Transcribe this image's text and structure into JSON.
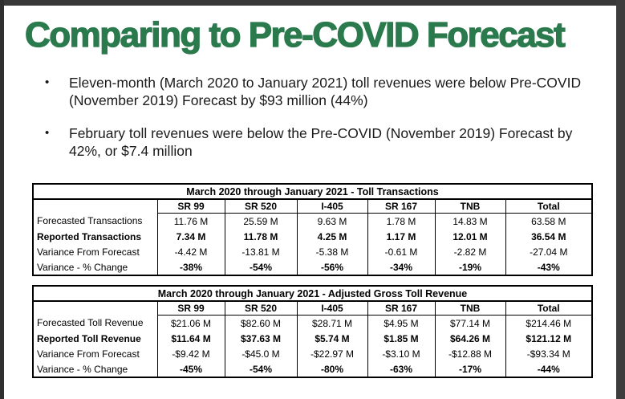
{
  "slide": {
    "title": "Comparing to Pre-COVID Forecast",
    "bullets": [
      "Eleven-month (March 2020 to January 2021) toll revenues were below Pre-COVID (November 2019) Forecast by $93 million (44%)",
      "February toll revenues were below the Pre-COVID (November 2019) Forecast by 42%, or $7.4 million"
    ]
  },
  "colors": {
    "title_green": "#2b7a4d",
    "frame_gray": "#383838",
    "table_border": "#000000"
  },
  "tables": [
    {
      "name": "toll-transactions",
      "title": "March 2020 through January 2021 - Toll Transactions",
      "columns": [
        "SR 99",
        "SR 520",
        "I-405",
        "SR 167",
        "TNB",
        "Total"
      ],
      "rows": [
        {
          "label": "Forecasted Transactions",
          "values": [
            "11.76 M",
            "25.59 M",
            "9.63 M",
            "1.78 M",
            "14.83 M",
            "63.58 M"
          ],
          "bold_label": false,
          "bold_values": false
        },
        {
          "label": "Reported Transactions",
          "values": [
            "7.34 M",
            "11.78 M",
            "4.25 M",
            "1.17 M",
            "12.01 M",
            "36.54 M"
          ],
          "bold_label": true,
          "bold_values": true
        },
        {
          "label": "Variance From Forecast",
          "values": [
            "-4.42 M",
            "-13.81 M",
            "-5.38 M",
            "-0.61 M",
            "-2.82 M",
            "-27.04 M"
          ],
          "bold_label": false,
          "bold_values": false
        },
        {
          "label": "Variance - % Change",
          "values": [
            "-38%",
            "-54%",
            "-56%",
            "-34%",
            "-19%",
            "-43%"
          ],
          "bold_label": false,
          "bold_values": true
        }
      ]
    },
    {
      "name": "adjusted-gross-toll-revenue",
      "title": "March 2020 through January 2021 - Adjusted Gross Toll Revenue",
      "columns": [
        "SR 99",
        "SR 520",
        "I-405",
        "SR 167",
        "TNB",
        "Total"
      ],
      "rows": [
        {
          "label": "Forecasted Toll Revenue",
          "values": [
            "$21.06 M",
            "$82.60 M",
            "$28.71 M",
            "$4.95 M",
            "$77.14 M",
            "$214.46 M"
          ],
          "bold_label": false,
          "bold_values": false
        },
        {
          "label": "Reported Toll Revenue",
          "values": [
            "$11.64 M",
            "$37.63 M",
            "$5.74 M",
            "$1.85 M",
            "$64.26 M",
            "$121.12 M"
          ],
          "bold_label": true,
          "bold_values": true
        },
        {
          "label": "Variance From Forecast",
          "values": [
            "-$9.42 M",
            "-$45.0 M",
            "-$22.97 M",
            "-$3.10 M",
            "-$12.88 M",
            "-$93.34 M"
          ],
          "bold_label": false,
          "bold_values": false
        },
        {
          "label": "Variance - % Change",
          "values": [
            "-45%",
            "-54%",
            "-80%",
            "-63%",
            "-17%",
            "-44%"
          ],
          "bold_label": false,
          "bold_values": true
        }
      ]
    }
  ]
}
